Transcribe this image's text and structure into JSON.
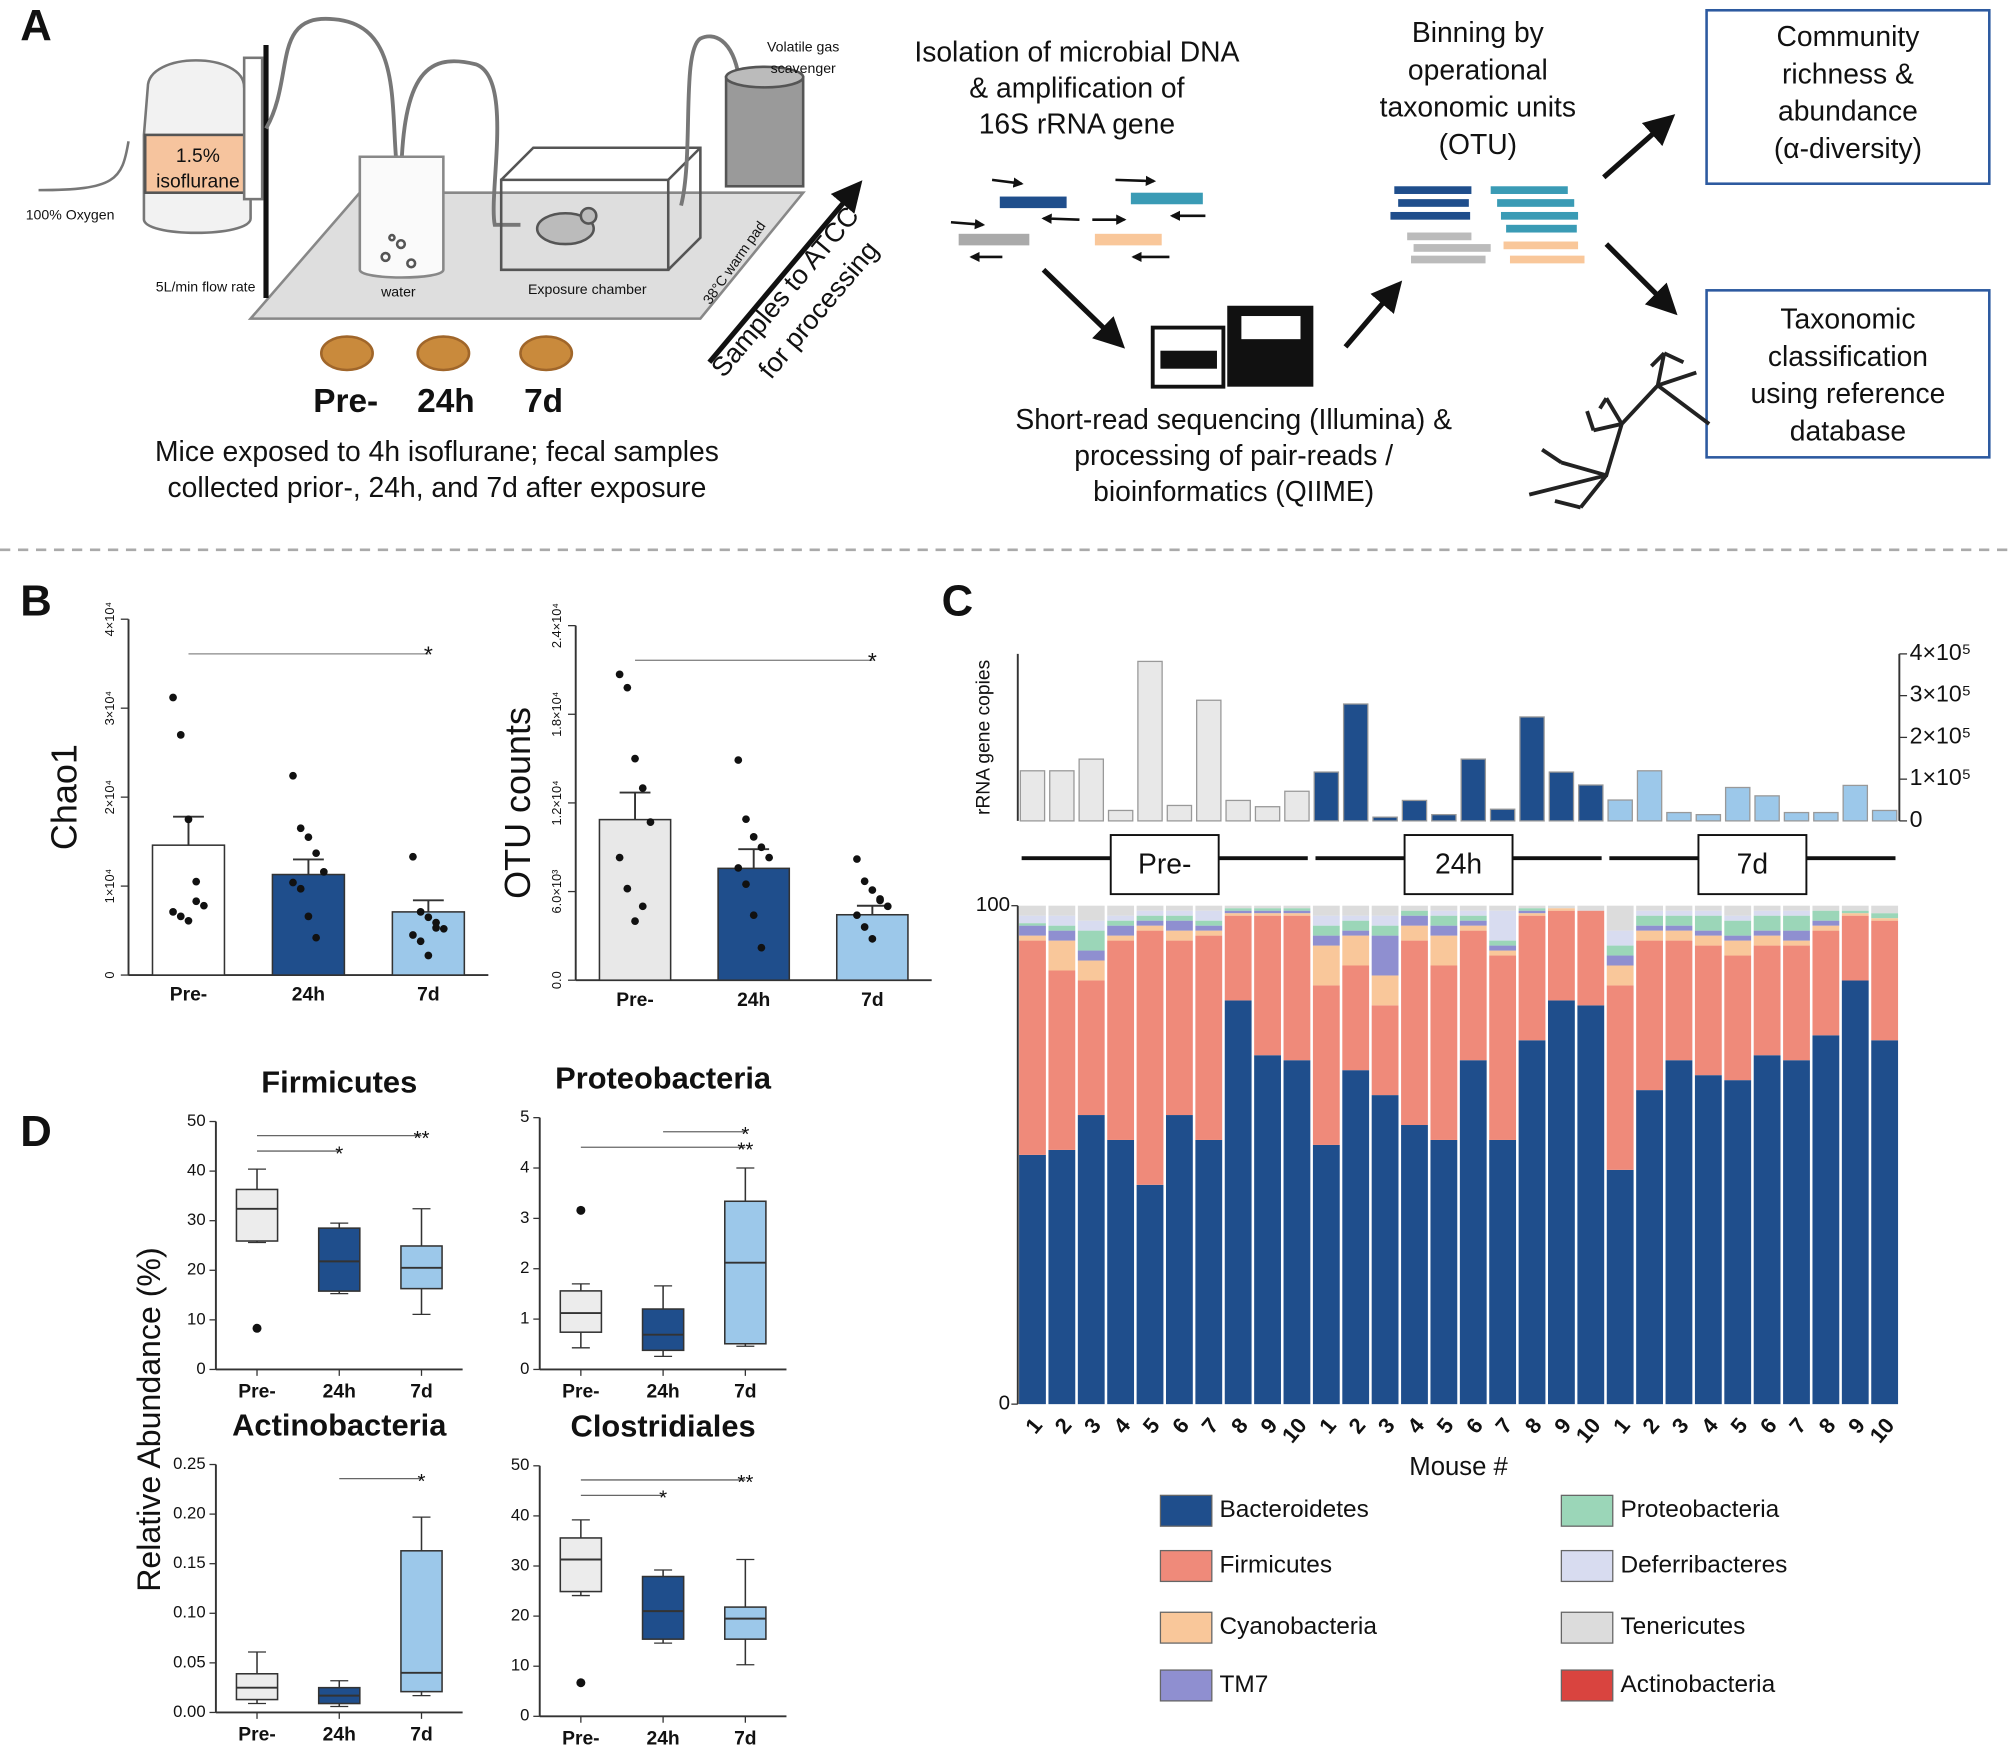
{
  "panel_labels": [
    "A",
    "B",
    "C",
    "D"
  ],
  "diagram": {
    "vaporizer": [
      "1.5%",
      "isoflurane"
    ],
    "oxygen": "100% Oxygen",
    "flow_rate": "5L/min flow rate",
    "water": "water",
    "chamber": "Exposure chamber",
    "warm_pad": "38°C warm pad",
    "scavenger": [
      "Volatile gas",
      "scavenger"
    ],
    "timepoints": [
      "Pre-",
      "24h",
      "7d"
    ],
    "caption": [
      "Mice exposed to 4h isoflurane; fecal samples",
      "collected prior-, 24h, and 7d after exposure"
    ],
    "shipping": [
      "Samples to ATCC",
      "for processing"
    ],
    "isolation": [
      "Isolation of microbial DNA",
      "& amplification of",
      "16S rRNA gene"
    ],
    "sequencing": [
      "Short-read sequencing (Illumina) &",
      "processing of pair-reads /",
      "bioinformatics (QIIME)"
    ],
    "binning": [
      "Binning by",
      "operational",
      "taxonomic units",
      "(OTU)"
    ],
    "alpha": [
      "Community",
      "richness &",
      "abundance",
      "(α-diversity)"
    ],
    "taxonomy": [
      "Taxonomic",
      "classification",
      "using reference",
      "database"
    ]
  },
  "panel_d_ylabel": "Relative Abundance (%)",
  "chart_data": [
    {
      "type": "bar",
      "ylabel": "Chao1",
      "categories": [
        "Pre-",
        "24h",
        "7d"
      ],
      "values": [
        14600,
        11300,
        7100
      ],
      "errors": [
        3200,
        1700,
        1300
      ],
      "colors": [
        "#ffffff",
        "#1f4e8c",
        "#9cc8ea"
      ],
      "points": [
        [
          31200,
          27000,
          17500,
          10500,
          7800,
          7100,
          6600,
          6100,
          8300
        ],
        [
          22400,
          16500,
          15500,
          13700,
          11600,
          10400,
          9700,
          6600,
          4200
        ],
        [
          13300,
          7100,
          6500,
          5300,
          5200,
          4500,
          3800,
          2200,
          5900
        ]
      ],
      "ylim": [
        0,
        40000
      ],
      "yticks": [
        0,
        {
          "value": 10000,
          "label": "1×10⁴"
        },
        {
          "value": 20000,
          "label": "2×10⁴"
        },
        {
          "value": 30000,
          "label": "3×10⁴"
        },
        {
          "value": 40000,
          "label": "4×10⁴"
        }
      ],
      "significance": [
        {
          "between": [
            "Pre-",
            "7d"
          ],
          "label": "*"
        }
      ]
    },
    {
      "type": "bar",
      "ylabel": "OTU counts",
      "categories": [
        "Pre-",
        "24h",
        "7d"
      ],
      "values": [
        10870,
        7570,
        4430
      ],
      "errors": [
        1830,
        1300,
        610
      ],
      "colors": [
        "#e8e8e8",
        "#1f4e8c",
        "#9cc8ea"
      ],
      "points": [
        [
          20700,
          19800,
          15000,
          13000,
          10700,
          8300,
          6200,
          4000,
          5000
        ],
        [
          14900,
          10900,
          9700,
          9000,
          8300,
          7600,
          6500,
          4400,
          2200
        ],
        [
          8200,
          6700,
          6100,
          5400,
          5000,
          4400,
          3600,
          2800,
          5500
        ]
      ],
      "ylim": [
        0,
        24000
      ],
      "yticks": [
        {
          "value": 0,
          "label": "0.0"
        },
        {
          "value": 6000,
          "label": "6.0×10³"
        },
        {
          "value": 12000,
          "label": "1.2×10⁴"
        },
        {
          "value": 18000,
          "label": "1.8×10⁴"
        },
        {
          "value": 24000,
          "label": "2.4×10⁴"
        }
      ],
      "significance": [
        {
          "between": [
            "Pre-",
            "7d"
          ],
          "label": "*"
        }
      ]
    },
    {
      "type": "group_bar",
      "ylabel": "rRNA gene copies",
      "series": [
        {
          "name": "Pre-",
          "color": "#e8e8e8",
          "values": [
            120000,
            120000,
            148000,
            25000,
            382000,
            37000,
            289000,
            49000,
            34000,
            71000
          ]
        },
        {
          "name": "24h",
          "color": "#1f4e8c",
          "values": [
            117000,
            280000,
            9000,
            49000,
            15000,
            148000,
            28000,
            249000,
            117000,
            86000
          ]
        },
        {
          "name": "7d",
          "color": "#9cc8ea",
          "values": [
            50000,
            120000,
            20000,
            15000,
            80000,
            60000,
            20000,
            20000,
            85000,
            25000
          ]
        }
      ],
      "ylim": [
        0,
        400000
      ],
      "yticks": [
        0,
        {
          "value": 100000,
          "label": "1×10⁵"
        },
        {
          "value": 200000,
          "label": "2×10⁵"
        },
        {
          "value": 300000,
          "label": "3×10⁵"
        },
        {
          "value": 400000,
          "label": "4×10⁵"
        }
      ]
    },
    {
      "type": "stacked_bar",
      "xlabel": "Mouse #",
      "categories": [
        "1",
        "2",
        "3",
        "4",
        "5",
        "6",
        "7",
        "8",
        "9",
        "10",
        "1",
        "2",
        "3",
        "4",
        "5",
        "6",
        "7",
        "8",
        "9",
        "10",
        "1",
        "2",
        "3",
        "4",
        "5",
        "6",
        "7",
        "8",
        "9",
        "10"
      ],
      "series": [
        {
          "name": "Bacteroidetes",
          "color": "#1f4e8c",
          "values": [
            50,
            51,
            58,
            53,
            44,
            58,
            53,
            81,
            70,
            69,
            52,
            67,
            62,
            56,
            53,
            69,
            53,
            73,
            81,
            80,
            47,
            63,
            69,
            66,
            65,
            70,
            69,
            74,
            85,
            73
          ]
        },
        {
          "name": "Firmicutes",
          "color": "#ef8a7a",
          "values": [
            43,
            36,
            27,
            40,
            51,
            35,
            41,
            17,
            28,
            29,
            32,
            21,
            18,
            37,
            35,
            26,
            37,
            25,
            18,
            19,
            37,
            30,
            24,
            26,
            25,
            22,
            23,
            21,
            13,
            24
          ]
        },
        {
          "name": "Cyanobacteria",
          "color": "#f9c79a",
          "values": [
            1,
            6,
            4,
            1,
            1,
            2,
            1,
            0.5,
            0.5,
            0.5,
            8,
            6,
            6,
            3,
            6,
            1,
            1,
            0.5,
            0.5,
            0,
            4,
            2,
            2,
            2,
            3,
            2,
            1,
            1,
            0.5,
            0.5
          ]
        },
        {
          "name": "TM7",
          "color": "#8f8fd0",
          "values": [
            2,
            2,
            2,
            2,
            1,
            2,
            1,
            0.5,
            0.5,
            0.5,
            2,
            1,
            8,
            2,
            2,
            1,
            1,
            0.5,
            0,
            0,
            2,
            1,
            1,
            1,
            1,
            1,
            2,
            1,
            0,
            0
          ]
        },
        {
          "name": "Proteobacteria",
          "color": "#9bd6b8",
          "values": [
            0.5,
            1,
            4,
            1,
            1,
            1,
            1,
            0.5,
            0.5,
            0.5,
            2,
            2,
            2,
            1,
            2,
            1,
            1,
            0.5,
            0,
            0,
            2,
            2,
            2,
            3,
            3,
            3,
            3,
            2,
            0.5,
            1
          ]
        },
        {
          "name": "Deferribacteres",
          "color": "#d8dcf0",
          "values": [
            1.5,
            2,
            2,
            1,
            1,
            1,
            2,
            0,
            0,
            0,
            2,
            1,
            2,
            0,
            1,
            1,
            6,
            0,
            0,
            0,
            3,
            1,
            1,
            1,
            1,
            1,
            1,
            0,
            0,
            0
          ]
        },
        {
          "name": "Tenericutes",
          "color": "#dcdcdc",
          "values": [
            2,
            2,
            3,
            2,
            1,
            1,
            1,
            0.5,
            0.5,
            0.5,
            2,
            2,
            2,
            1,
            1,
            1,
            1,
            0.5,
            0.5,
            1,
            5,
            1,
            1,
            1,
            2,
            1,
            1,
            1,
            1,
            1.5
          ]
        },
        {
          "name": "Actinobacteria",
          "color": "#d9443f",
          "values": [
            0,
            0,
            0,
            0,
            0,
            0,
            0,
            0,
            0,
            0,
            0,
            0,
            0,
            0,
            0,
            0,
            0,
            0,
            0,
            0,
            0,
            0,
            0,
            0,
            0,
            0,
            0,
            0,
            0,
            0
          ]
        }
      ],
      "ylim": [
        0,
        100
      ],
      "yticks": [
        0,
        100
      ]
    },
    {
      "type": "box",
      "title": "Firmicutes",
      "categories": [
        "Pre-",
        "24h",
        "7d"
      ],
      "colors": [
        "#ececec",
        "#1f4e8c",
        "#9cc8ea"
      ],
      "boxes": [
        {
          "min": 25.6,
          "q1": 25.9,
          "median": 32.4,
          "q3": 36.3,
          "max": 40.4,
          "outliers": [
            8.3
          ]
        },
        {
          "min": 15.3,
          "q1": 15.8,
          "median": 21.8,
          "q3": 28.5,
          "max": 29.5,
          "outliers": []
        },
        {
          "min": 11.1,
          "q1": 16.3,
          "median": 20.5,
          "q3": 24.9,
          "max": 32.4,
          "outliers": []
        }
      ],
      "ylim": [
        0,
        50
      ],
      "yticks": [
        0,
        10,
        20,
        30,
        40,
        50
      ],
      "significance": [
        {
          "between": [
            "Pre-",
            "7d"
          ],
          "label": "**"
        },
        {
          "between": [
            "Pre-",
            "24h"
          ],
          "label": "*"
        }
      ]
    },
    {
      "type": "box",
      "title": "Proteobacteria",
      "categories": [
        "Pre-",
        "24h",
        "7d"
      ],
      "colors": [
        "#ececec",
        "#1f4e8c",
        "#9cc8ea"
      ],
      "boxes": [
        {
          "min": 0.43,
          "q1": 0.74,
          "median": 1.12,
          "q3": 1.56,
          "max": 1.7,
          "outliers": [
            3.16
          ]
        },
        {
          "min": 0.26,
          "q1": 0.38,
          "median": 0.69,
          "q3": 1.2,
          "max": 1.66,
          "outliers": []
        },
        {
          "min": 0.46,
          "q1": 0.51,
          "median": 2.12,
          "q3": 3.34,
          "max": 4.0,
          "outliers": []
        }
      ],
      "ylim": [
        0,
        5
      ],
      "yticks": [
        0,
        1,
        2,
        3,
        4,
        5
      ],
      "significance": [
        {
          "between": [
            "24h",
            "7d"
          ],
          "label": "*"
        },
        {
          "between": [
            "Pre-",
            "7d"
          ],
          "label": "**"
        }
      ]
    },
    {
      "type": "box",
      "title": "Actinobacteria",
      "categories": [
        "Pre-",
        "24h",
        "7d"
      ],
      "colors": [
        "#ececec",
        "#1f4e8c",
        "#9cc8ea"
      ],
      "boxes": [
        {
          "min": 0.009,
          "q1": 0.013,
          "median": 0.025,
          "q3": 0.039,
          "max": 0.061,
          "outliers": []
        },
        {
          "min": 0.006,
          "q1": 0.009,
          "median": 0.017,
          "q3": 0.025,
          "max": 0.032,
          "outliers": []
        },
        {
          "min": 0.017,
          "q1": 0.021,
          "median": 0.04,
          "q3": 0.163,
          "max": 0.197,
          "outliers": []
        }
      ],
      "ylim": [
        0,
        0.25
      ],
      "yticks": [
        {
          "value": 0,
          "label": "0.00"
        },
        {
          "value": 0.05,
          "label": "0.05"
        },
        {
          "value": 0.1,
          "label": "0.10"
        },
        {
          "value": 0.15,
          "label": "0.15"
        },
        {
          "value": 0.2,
          "label": "0.20"
        },
        {
          "value": 0.25,
          "label": "0.25"
        }
      ],
      "significance": [
        {
          "between": [
            "24h",
            "7d"
          ],
          "label": "*"
        }
      ]
    },
    {
      "type": "box",
      "title": "Clostridiales",
      "categories": [
        "Pre-",
        "24h",
        "7d"
      ],
      "colors": [
        "#ececec",
        "#1f4e8c",
        "#9cc8ea"
      ],
      "boxes": [
        {
          "min": 24.1,
          "q1": 24.9,
          "median": 31.3,
          "q3": 35.6,
          "max": 39.2,
          "outliers": [
            6.7
          ]
        },
        {
          "min": 14.6,
          "q1": 15.4,
          "median": 21.0,
          "q3": 27.9,
          "max": 29.2,
          "outliers": []
        },
        {
          "min": 10.3,
          "q1": 15.4,
          "median": 19.5,
          "q3": 21.8,
          "max": 31.3,
          "outliers": []
        }
      ],
      "ylim": [
        0,
        50
      ],
      "yticks": [
        0,
        10,
        20,
        30,
        40,
        50
      ],
      "significance": [
        {
          "between": [
            "Pre-",
            "7d"
          ],
          "label": "**"
        },
        {
          "between": [
            "Pre-",
            "24h"
          ],
          "label": "*"
        }
      ]
    }
  ]
}
